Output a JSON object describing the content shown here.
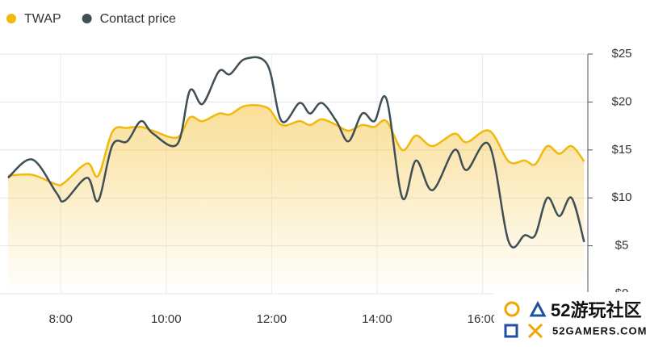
{
  "chart_data": {
    "type": "line",
    "x": [
      7.0,
      7.46,
      7.92,
      8.07,
      8.5,
      8.71,
      8.98,
      9.26,
      9.52,
      9.75,
      10.21,
      10.45,
      10.69,
      11.0,
      11.21,
      11.5,
      11.92,
      12.19,
      12.53,
      12.73,
      12.95,
      13.23,
      13.46,
      13.72,
      13.95,
      14.18,
      14.48,
      14.74,
      15.05,
      15.47,
      15.7,
      16.13,
      16.5,
      16.8,
      17.0,
      17.23,
      17.46,
      17.69,
      17.93
    ],
    "series": [
      {
        "name": "TWAP",
        "color": "#f0b90b",
        "area": true,
        "values": [
          12.3,
          12.4,
          11.4,
          11.6,
          13.6,
          12.3,
          16.9,
          17.3,
          17.4,
          17.0,
          16.3,
          18.4,
          18.0,
          18.8,
          18.7,
          19.6,
          19.4,
          17.6,
          18.0,
          17.6,
          18.2,
          17.6,
          17.0,
          17.6,
          17.4,
          18.0,
          15.0,
          16.5,
          15.4,
          16.7,
          15.8,
          17.0,
          13.8,
          13.9,
          13.5,
          15.4,
          14.6,
          15.4,
          13.8
        ]
      },
      {
        "name": "Contact price",
        "color": "#3f4f55",
        "values": [
          12.1,
          14.0,
          10.5,
          9.7,
          12.1,
          9.7,
          15.5,
          15.9,
          18.0,
          16.7,
          15.6,
          21.2,
          19.8,
          23.2,
          22.9,
          24.5,
          23.9,
          18.0,
          19.9,
          18.8,
          19.9,
          18.0,
          15.9,
          18.8,
          18.0,
          20.3,
          10.0,
          13.9,
          10.8,
          15.0,
          12.9,
          15.5,
          5.4,
          6.1,
          6.1,
          10.0,
          8.1,
          10.0,
          5.4
        ]
      }
    ],
    "xlim": [
      7,
      18
    ],
    "xticks": [
      {
        "value": 8,
        "label": "8:00"
      },
      {
        "value": 10,
        "label": "10:00"
      },
      {
        "value": 12,
        "label": "12:00"
      },
      {
        "value": 14,
        "label": "14:00"
      },
      {
        "value": 16,
        "label": "16:00"
      }
    ],
    "ylim": [
      0,
      25
    ],
    "yticks": [
      {
        "value": 0,
        "label": "$0"
      },
      {
        "value": 5,
        "label": "$5"
      },
      {
        "value": 10,
        "label": "$10"
      },
      {
        "value": 15,
        "label": "$15"
      },
      {
        "value": 20,
        "label": "$20"
      },
      {
        "value": 25,
        "label": "$25"
      }
    ],
    "grid": true,
    "legend": "top-left",
    "y_axis_side": "right"
  },
  "watermark": {
    "brand": "52游玩社区",
    "url": "52GAMERS.COM"
  }
}
